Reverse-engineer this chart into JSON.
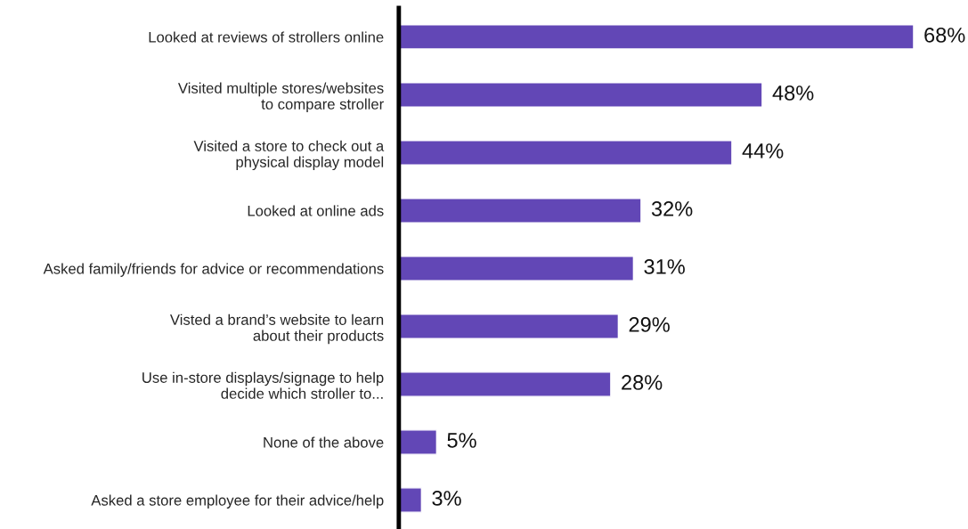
{
  "chart_data": {
    "type": "bar",
    "orientation": "horizontal",
    "categories": [
      "Looked at reviews of strollers online",
      "Visited multiple stores/websites\nto compare stroller",
      "Visited a store to check out a\nphysical display model",
      "Looked at online ads",
      "Asked family/friends for advice or recommendations",
      "Visted a brand’s website to learn\nabout their products",
      "Use in-store displays/signage to help\ndecide which stroller to...",
      "None of the above",
      "Asked a store employee for their advice/help"
    ],
    "values": [
      68,
      48,
      44,
      32,
      31,
      29,
      28,
      5,
      3
    ],
    "value_labels": [
      "68%",
      "48%",
      "44%",
      "32%",
      "31%",
      "29%",
      "28%",
      "5%",
      "3%"
    ],
    "color": "#6247b6",
    "grid": false,
    "legend": false
  }
}
